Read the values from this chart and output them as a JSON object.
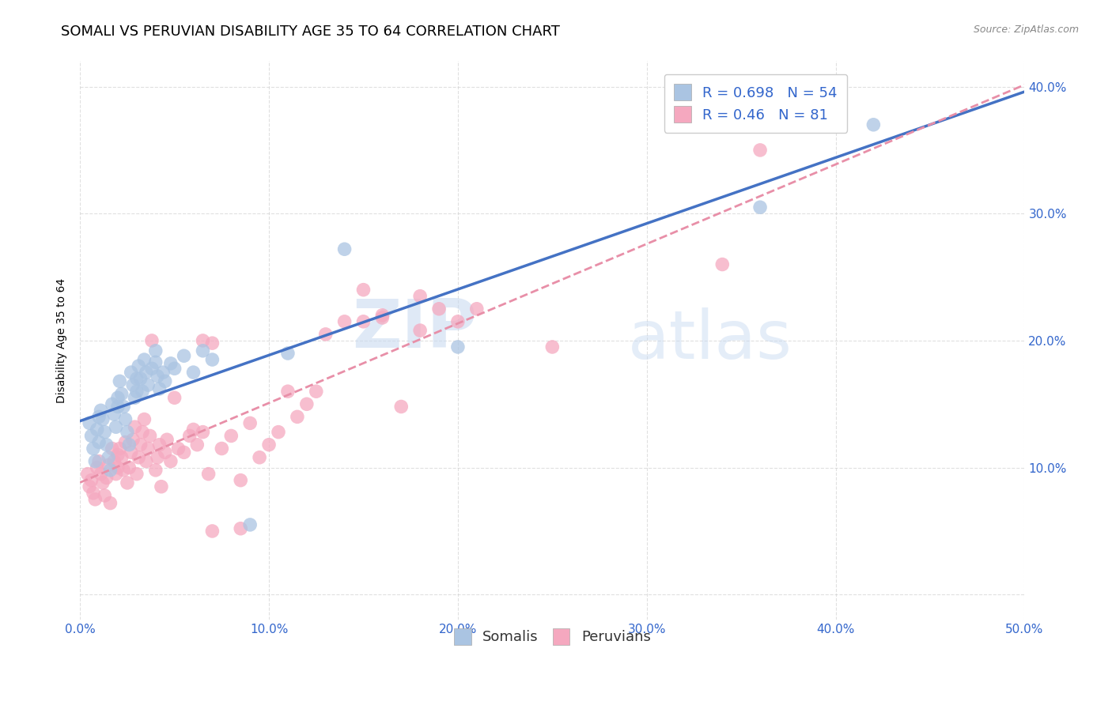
{
  "title": "SOMALI VS PERUVIAN DISABILITY AGE 35 TO 64 CORRELATION CHART",
  "source": "Source: ZipAtlas.com",
  "ylabel": "Disability Age 35 to 64",
  "xlim": [
    0.0,
    0.5
  ],
  "ylim": [
    -0.02,
    0.42
  ],
  "xticks": [
    0.0,
    0.1,
    0.2,
    0.3,
    0.4,
    0.5
  ],
  "xtick_labels": [
    "0.0%",
    "10.0%",
    "20.0%",
    "30.0%",
    "40.0%",
    "50.0%"
  ],
  "yticks": [
    0.0,
    0.1,
    0.2,
    0.3,
    0.4
  ],
  "ytick_labels": [
    "",
    "10.0%",
    "20.0%",
    "30.0%",
    "40.0%"
  ],
  "somali_R": 0.698,
  "somali_N": 54,
  "peruvian_R": 0.46,
  "peruvian_N": 81,
  "somali_color": "#aac4e2",
  "peruvian_color": "#f5a8bf",
  "somali_line_color": "#4472c4",
  "peruvian_line_color": "#e88fa8",
  "legend_label_somalis": "Somalis",
  "legend_label_peruvians": "Peruvians",
  "watermark1": "ZIP",
  "watermark2": "atlas",
  "somali_x": [
    0.005,
    0.006,
    0.007,
    0.008,
    0.009,
    0.01,
    0.01,
    0.011,
    0.012,
    0.013,
    0.014,
    0.015,
    0.016,
    0.017,
    0.018,
    0.019,
    0.02,
    0.02,
    0.021,
    0.022,
    0.023,
    0.024,
    0.025,
    0.026,
    0.027,
    0.028,
    0.029,
    0.03,
    0.03,
    0.031,
    0.032,
    0.033,
    0.034,
    0.035,
    0.036,
    0.038,
    0.04,
    0.04,
    0.041,
    0.042,
    0.044,
    0.045,
    0.048,
    0.05,
    0.055,
    0.06,
    0.065,
    0.07,
    0.09,
    0.11,
    0.14,
    0.2,
    0.36,
    0.42
  ],
  "somali_y": [
    0.135,
    0.125,
    0.115,
    0.105,
    0.13,
    0.14,
    0.12,
    0.145,
    0.138,
    0.128,
    0.118,
    0.108,
    0.098,
    0.15,
    0.142,
    0.132,
    0.155,
    0.148,
    0.168,
    0.158,
    0.148,
    0.138,
    0.128,
    0.118,
    0.175,
    0.165,
    0.155,
    0.17,
    0.16,
    0.18,
    0.17,
    0.16,
    0.185,
    0.175,
    0.165,
    0.178,
    0.183,
    0.192,
    0.172,
    0.162,
    0.175,
    0.168,
    0.182,
    0.178,
    0.188,
    0.175,
    0.192,
    0.185,
    0.055,
    0.19,
    0.272,
    0.195,
    0.305,
    0.37
  ],
  "peruvian_x": [
    0.004,
    0.005,
    0.006,
    0.007,
    0.008,
    0.009,
    0.01,
    0.011,
    0.012,
    0.013,
    0.014,
    0.015,
    0.016,
    0.017,
    0.018,
    0.019,
    0.02,
    0.02,
    0.021,
    0.022,
    0.023,
    0.024,
    0.025,
    0.026,
    0.027,
    0.028,
    0.029,
    0.03,
    0.031,
    0.032,
    0.033,
    0.034,
    0.035,
    0.036,
    0.037,
    0.038,
    0.04,
    0.041,
    0.042,
    0.043,
    0.045,
    0.046,
    0.048,
    0.05,
    0.052,
    0.055,
    0.058,
    0.06,
    0.062,
    0.065,
    0.068,
    0.07,
    0.075,
    0.08,
    0.085,
    0.09,
    0.095,
    0.1,
    0.105,
    0.11,
    0.115,
    0.12,
    0.125,
    0.13,
    0.14,
    0.15,
    0.16,
    0.17,
    0.18,
    0.19,
    0.2,
    0.21,
    0.15,
    0.16,
    0.25,
    0.18,
    0.065,
    0.07,
    0.085,
    0.34,
    0.36
  ],
  "peruvian_y": [
    0.095,
    0.085,
    0.09,
    0.08,
    0.075,
    0.1,
    0.105,
    0.095,
    0.088,
    0.078,
    0.092,
    0.102,
    0.072,
    0.115,
    0.105,
    0.095,
    0.11,
    0.1,
    0.115,
    0.108,
    0.098,
    0.12,
    0.088,
    0.1,
    0.112,
    0.122,
    0.132,
    0.095,
    0.108,
    0.118,
    0.128,
    0.138,
    0.105,
    0.115,
    0.125,
    0.2,
    0.098,
    0.108,
    0.118,
    0.085,
    0.112,
    0.122,
    0.105,
    0.155,
    0.115,
    0.112,
    0.125,
    0.13,
    0.118,
    0.128,
    0.095,
    0.198,
    0.115,
    0.125,
    0.09,
    0.135,
    0.108,
    0.118,
    0.128,
    0.16,
    0.14,
    0.15,
    0.16,
    0.205,
    0.215,
    0.24,
    0.218,
    0.148,
    0.208,
    0.225,
    0.215,
    0.225,
    0.215,
    0.22,
    0.195,
    0.235,
    0.2,
    0.05,
    0.052,
    0.26,
    0.35
  ],
  "background_color": "#ffffff",
  "grid_color": "#cccccc",
  "title_fontsize": 13,
  "axis_label_fontsize": 10,
  "tick_fontsize": 11,
  "legend_fontsize": 13,
  "right_ytick_color": "#3366cc"
}
